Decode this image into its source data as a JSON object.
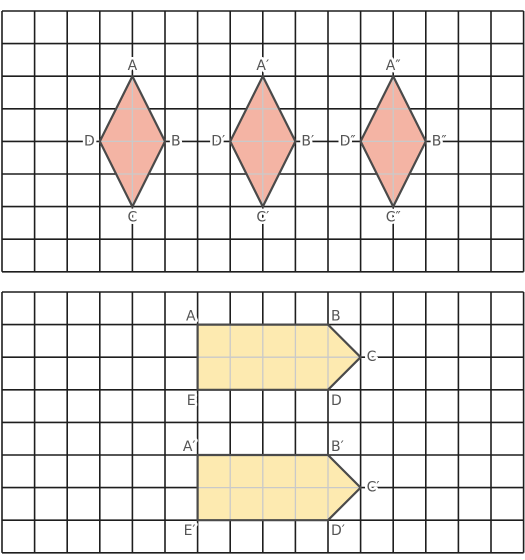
{
  "panels": [
    {
      "id": "rhombus-panel",
      "cols": 16,
      "rows": 8,
      "shape_fill": "#f4b4a4",
      "shapes": [
        {
          "id": "rhombus-original",
          "vertices": [
            {
              "label": "A",
              "x": 4,
              "y": 2,
              "anchor": "top"
            },
            {
              "label": "B",
              "x": 5,
              "y": 4,
              "anchor": "right"
            },
            {
              "label": "C",
              "x": 4,
              "y": 6,
              "anchor": "bottom"
            },
            {
              "label": "D",
              "x": 3,
              "y": 4,
              "anchor": "left"
            }
          ]
        },
        {
          "id": "rhombus-prime",
          "vertices": [
            {
              "label": "A′",
              "x": 8,
              "y": 2,
              "anchor": "top"
            },
            {
              "label": "B′",
              "x": 9,
              "y": 4,
              "anchor": "right"
            },
            {
              "label": "C′",
              "x": 8,
              "y": 6,
              "anchor": "bottom"
            },
            {
              "label": "D′",
              "x": 7,
              "y": 4,
              "anchor": "left"
            }
          ]
        },
        {
          "id": "rhombus-double-prime",
          "vertices": [
            {
              "label": "A″",
              "x": 12,
              "y": 2,
              "anchor": "top"
            },
            {
              "label": "B″",
              "x": 13,
              "y": 4,
              "anchor": "right"
            },
            {
              "label": "C″",
              "x": 12,
              "y": 6,
              "anchor": "bottom"
            },
            {
              "label": "D″",
              "x": 11,
              "y": 4,
              "anchor": "left"
            }
          ]
        }
      ]
    },
    {
      "id": "pentagon-panel",
      "cols": 16,
      "rows": 8,
      "shape_fill": "#fdeab0",
      "shapes": [
        {
          "id": "pentagon-original",
          "vertices": [
            {
              "label": "A",
              "x": 6,
              "y": 1,
              "anchor": "top-left"
            },
            {
              "label": "B",
              "x": 10,
              "y": 1,
              "anchor": "top-right"
            },
            {
              "label": "C",
              "x": 11,
              "y": 2,
              "anchor": "right"
            },
            {
              "label": "D",
              "x": 10,
              "y": 3,
              "anchor": "bottom-right"
            },
            {
              "label": "E",
              "x": 6,
              "y": 3,
              "anchor": "bottom-left"
            }
          ]
        },
        {
          "id": "pentagon-prime",
          "vertices": [
            {
              "label": "A′",
              "x": 6,
              "y": 5,
              "anchor": "top-left"
            },
            {
              "label": "B′",
              "x": 10,
              "y": 5,
              "anchor": "top-right"
            },
            {
              "label": "C′",
              "x": 11,
              "y": 6,
              "anchor": "right"
            },
            {
              "label": "D′",
              "x": 10,
              "y": 7,
              "anchor": "bottom-right"
            },
            {
              "label": "E′",
              "x": 6,
              "y": 7,
              "anchor": "bottom-left"
            }
          ]
        }
      ]
    }
  ]
}
